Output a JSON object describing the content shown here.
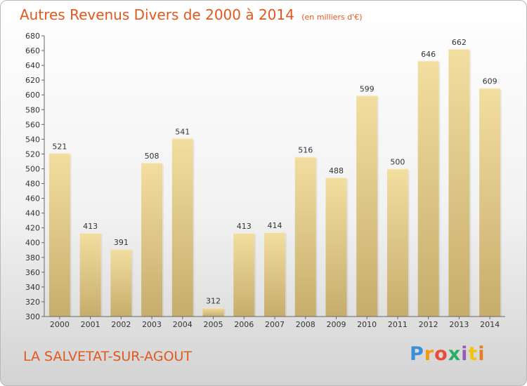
{
  "title": "Autres Revenus Divers de 2000 à 2014",
  "unit_note": "(en milliers d'€)",
  "place": "LA SALVETAT-SUR-AGOUT",
  "logo": {
    "letters": [
      "P",
      "r",
      "o",
      "x",
      "i",
      "t",
      "i"
    ],
    "colors": [
      "#3a8fd6",
      "#f39c12",
      "#e74c3c",
      "#27ae60",
      "#9b59b6",
      "#f1c40f",
      "#e67e22"
    ]
  },
  "colors": {
    "title": "#e0591f",
    "bar_top": "#f2dea0",
    "bar_bottom": "#c6ad6d"
  },
  "chart_data": {
    "type": "bar",
    "categories": [
      "2000",
      "2001",
      "2002",
      "2003",
      "2004",
      "2005",
      "2006",
      "2007",
      "2008",
      "2009",
      "2010",
      "2011",
      "2012",
      "2013",
      "2014"
    ],
    "values": [
      521,
      413,
      391,
      508,
      541,
      312,
      413,
      414,
      516,
      488,
      599,
      500,
      646,
      662,
      609
    ],
    "ylim": [
      300,
      680
    ],
    "ytick_step": 20,
    "grid": false,
    "xlabel": "",
    "ylabel": ""
  }
}
